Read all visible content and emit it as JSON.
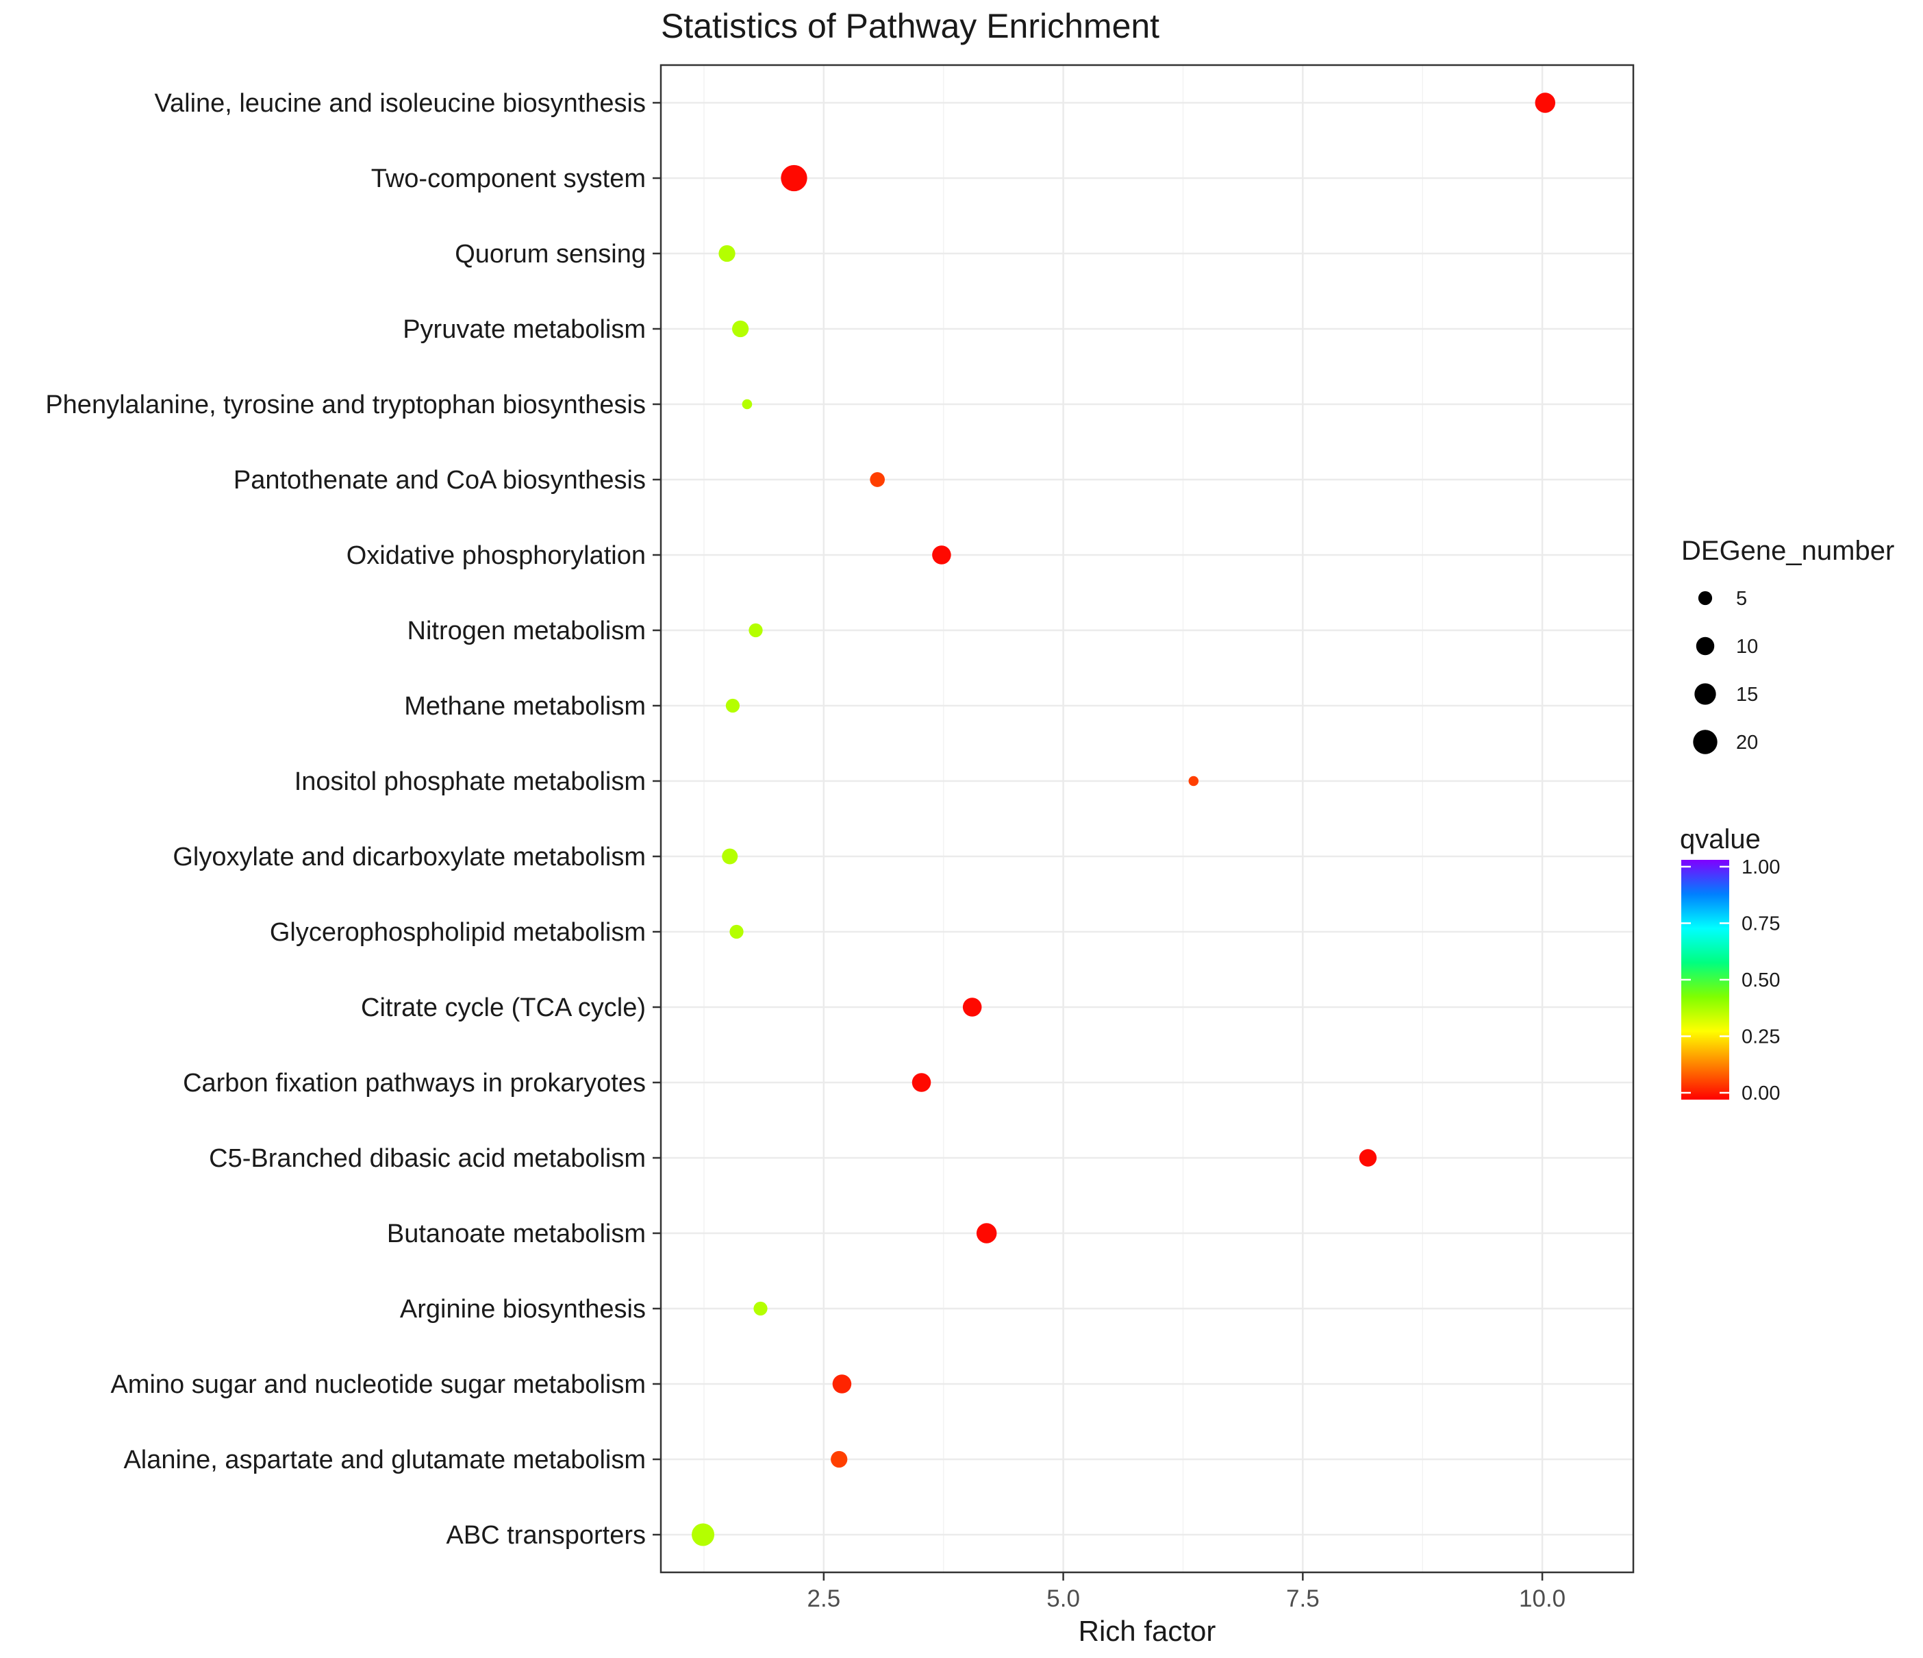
{
  "chart_data": {
    "type": "scatter",
    "title": "Statistics of Pathway Enrichment",
    "xlabel": "Rich factor",
    "ylabel": "",
    "xlim": [
      0.8,
      10.95
    ],
    "xticks": [
      "2.5",
      "5.0",
      "7.5",
      "10.0"
    ],
    "xtick_values": [
      2.5,
      5.0,
      7.5,
      10.0
    ],
    "grid": true,
    "categories": [
      "Valine, leucine and isoleucine biosynthesis",
      "Two-component system",
      "Quorum sensing",
      "Pyruvate metabolism",
      "Phenylalanine, tyrosine and tryptophan biosynthesis",
      "Pantothenate and CoA biosynthesis",
      "Oxidative phosphorylation",
      "Nitrogen metabolism",
      "Methane metabolism",
      "Inositol phosphate metabolism",
      "Glyoxylate and dicarboxylate metabolism",
      "Glycerophospholipid metabolism",
      "Citrate cycle (TCA cycle)",
      "Carbon fixation pathways in prokaryotes",
      "C5-Branched dibasic acid metabolism",
      "Butanoate metabolism",
      "Arginine biosynthesis",
      "Amino sugar and nucleotide sugar metabolism",
      "Alanine, aspartate and glutamate metabolism",
      "ABC transporters"
    ],
    "points": [
      {
        "pathway": "Valine, leucine and isoleucine biosynthesis",
        "rich_factor": 10.03,
        "gene_number": 13,
        "qvalue": 0.01
      },
      {
        "pathway": "Two-component system",
        "rich_factor": 2.19,
        "gene_number": 24,
        "qvalue": 0.01
      },
      {
        "pathway": "Quorum sensing",
        "rich_factor": 1.49,
        "gene_number": 8,
        "qvalue": 0.37
      },
      {
        "pathway": "Pyruvate metabolism",
        "rich_factor": 1.63,
        "gene_number": 8,
        "qvalue": 0.37
      },
      {
        "pathway": "Phenylalanine, tyrosine and tryptophan biosynthesis",
        "rich_factor": 1.7,
        "gene_number": 2,
        "qvalue": 0.37
      },
      {
        "pathway": "Pantothenate and CoA biosynthesis",
        "rich_factor": 3.06,
        "gene_number": 6,
        "qvalue": 0.07
      },
      {
        "pathway": "Oxidative phosphorylation",
        "rich_factor": 3.73,
        "gene_number": 11,
        "qvalue": 0.01
      },
      {
        "pathway": "Nitrogen metabolism",
        "rich_factor": 1.79,
        "gene_number": 5,
        "qvalue": 0.37
      },
      {
        "pathway": "Methane metabolism",
        "rich_factor": 1.55,
        "gene_number": 5,
        "qvalue": 0.37
      },
      {
        "pathway": "Inositol phosphate metabolism",
        "rich_factor": 6.36,
        "gene_number": 2,
        "qvalue": 0.07
      },
      {
        "pathway": "Glyoxylate and dicarboxylate metabolism",
        "rich_factor": 1.52,
        "gene_number": 7,
        "qvalue": 0.37
      },
      {
        "pathway": "Glycerophospholipid metabolism",
        "rich_factor": 1.59,
        "gene_number": 5,
        "qvalue": 0.37
      },
      {
        "pathway": "Citrate cycle (TCA cycle)",
        "rich_factor": 4.05,
        "gene_number": 11,
        "qvalue": 0.01
      },
      {
        "pathway": "Carbon fixation pathways in prokaryotes",
        "rich_factor": 3.52,
        "gene_number": 11,
        "qvalue": 0.01
      },
      {
        "pathway": "C5-Branched dibasic acid metabolism",
        "rich_factor": 8.18,
        "gene_number": 9,
        "qvalue": 0.01
      },
      {
        "pathway": "Butanoate metabolism",
        "rich_factor": 4.2,
        "gene_number": 13,
        "qvalue": 0.01
      },
      {
        "pathway": "Arginine biosynthesis",
        "rich_factor": 1.84,
        "gene_number": 5,
        "qvalue": 0.37
      },
      {
        "pathway": "Amino sugar and nucleotide sugar metabolism",
        "rich_factor": 2.69,
        "gene_number": 11,
        "qvalue": 0.04
      },
      {
        "pathway": "Alanine, aspartate and glutamate metabolism",
        "rich_factor": 2.66,
        "gene_number": 8,
        "qvalue": 0.07
      },
      {
        "pathway": "ABC transporters",
        "rich_factor": 1.24,
        "gene_number": 17,
        "qvalue": 0.37
      }
    ],
    "size_legend": {
      "title": "DEGene_number",
      "values": [
        5,
        10,
        15,
        20
      ],
      "labels": [
        "5",
        "10",
        "15",
        "20"
      ]
    },
    "color_legend": {
      "title": "qvalue",
      "range": [
        0.0,
        1.0
      ],
      "labels": [
        "1.00",
        "0.75",
        "0.50",
        "0.25",
        "0.00"
      ],
      "colors": [
        "#ff0000",
        "#ff8000",
        "#ffff00",
        "#80ff00",
        "#00ff80",
        "#00ffff",
        "#0080ff",
        "#8000ff"
      ]
    }
  }
}
